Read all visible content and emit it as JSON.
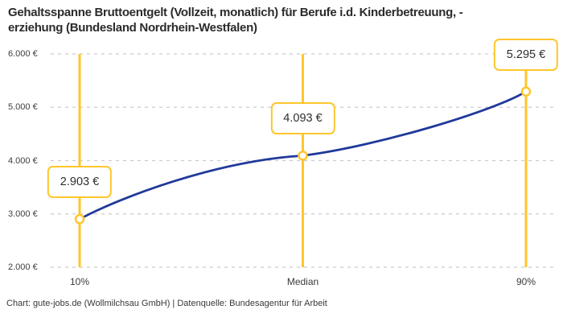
{
  "header": {
    "title_lines": [
      "Gehaltsspanne Bruttoentgelt (Vollzeit, monatlich) für Berufe i.d. Kinderbetreuung, -",
      "erziehung (Bundesland Nordrhein-Westfalen)"
    ]
  },
  "footer": {
    "credit": "Chart: gute-jobs.de (Wollmilchsau GmbH) | Datenquelle: Bundesagentur für Arbeit"
  },
  "chart_data": {
    "type": "line",
    "title": "Gehaltsspanne Bruttoentgelt (Vollzeit, monatlich) für Berufe i.d. Kinderbetreuung, -erziehung (Bundesland Nordrhein-Westfalen)",
    "categories": [
      "10%",
      "Median",
      "90%"
    ],
    "values": [
      2903,
      4093,
      5295
    ],
    "value_labels": [
      "2.903 €",
      "4.093 €",
      "5.295 €"
    ],
    "y_ticks": [
      2000,
      3000,
      4000,
      5000,
      6000
    ],
    "y_tick_labels": [
      "2.000 €",
      "3.000 €",
      "4.000 €",
      "5.000 €",
      "6.000 €"
    ],
    "ylim": [
      2000,
      6000
    ],
    "xlabel": "",
    "ylabel": "",
    "grid": "horizontal-dashed",
    "legend": "none",
    "marker": "open-circle",
    "colors": {
      "curve": "#20399a",
      "accent": "#ffc62b",
      "grid": "#cccccc",
      "background": "#ffffff",
      "text": "#2b2b2b"
    }
  }
}
